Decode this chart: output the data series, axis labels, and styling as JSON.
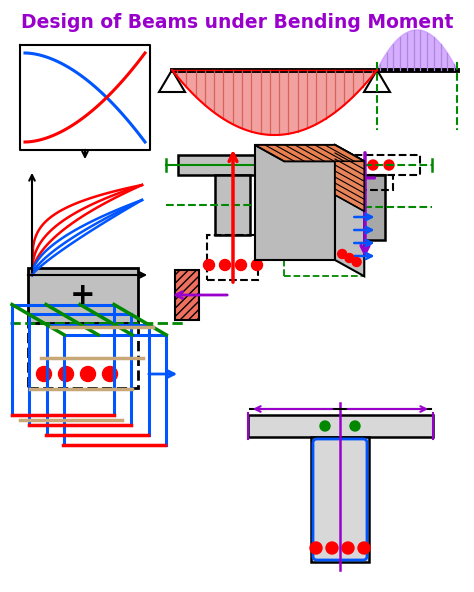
{
  "title": "Design of Beams under Bending Moment",
  "title_color": "#9900CC",
  "title_fontsize": 13.5,
  "bg_color": "#FFFFFF",
  "red": "#FF0000",
  "blue": "#0055FF",
  "green": "#008800",
  "purple": "#9900CC",
  "salmon": "#F08080",
  "salmon2": "#E8A090",
  "lavender": "#CC99FF",
  "orange": "#E8855A",
  "gray1": "#C0C0C0",
  "gray2": "#A8A8A8",
  "gray3": "#D8D8D8",
  "tan": "#C8A878",
  "darktan": "#A07040"
}
